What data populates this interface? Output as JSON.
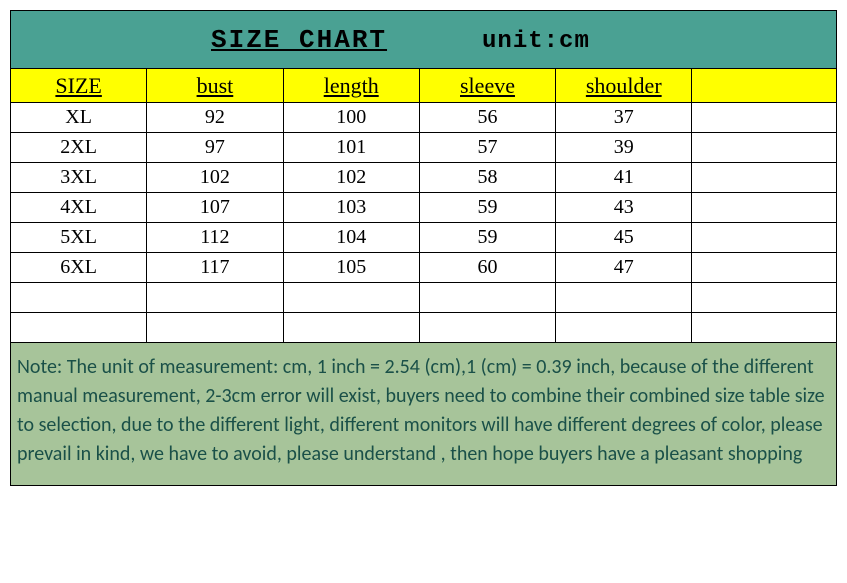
{
  "title": {
    "main": "SIZE CHART",
    "unit": "unit:cm",
    "bg_color": "#4aa193",
    "font_family": "Consolas",
    "font_size": 26
  },
  "table": {
    "header_bg": "#ffff00",
    "header_font_size": 22,
    "data_font_size": 20,
    "border_color": "#000000",
    "row_bg": "#ffffff",
    "columns": [
      "SIZE",
      "bust",
      "length",
      "sleeve",
      "shoulder",
      ""
    ],
    "col_widths_pct": [
      16.5,
      16.5,
      16.5,
      16.5,
      16.5,
      17.5
    ],
    "rows": [
      [
        "XL",
        "92",
        "100",
        "56",
        "37",
        ""
      ],
      [
        "2XL",
        "97",
        "101",
        "57",
        "39",
        ""
      ],
      [
        "3XL",
        "102",
        "102",
        "58",
        "41",
        ""
      ],
      [
        "4XL",
        "107",
        "103",
        "59",
        "43",
        ""
      ],
      [
        "5XL",
        "112",
        "104",
        "59",
        "45",
        ""
      ],
      [
        "6XL",
        "117",
        "105",
        "60",
        "47",
        ""
      ]
    ],
    "empty_rows": 2
  },
  "note": {
    "bg_color": "#a7c49a",
    "text_color": "#1a5048",
    "font_family": "Calibri",
    "font_size": 20,
    "text": "Note: The unit of measurement: cm, 1 inch = 2.54  (cm),1 (cm) = 0.39 inch, because of the different manual measurement, 2-3cm error will exist, buyers need to combine their combined size table size to selection, due to the different light, different monitors will have different degrees of color, please prevail in kind, we have to avoid, please understand ,  then hope buyers have a pleasant shopping"
  }
}
